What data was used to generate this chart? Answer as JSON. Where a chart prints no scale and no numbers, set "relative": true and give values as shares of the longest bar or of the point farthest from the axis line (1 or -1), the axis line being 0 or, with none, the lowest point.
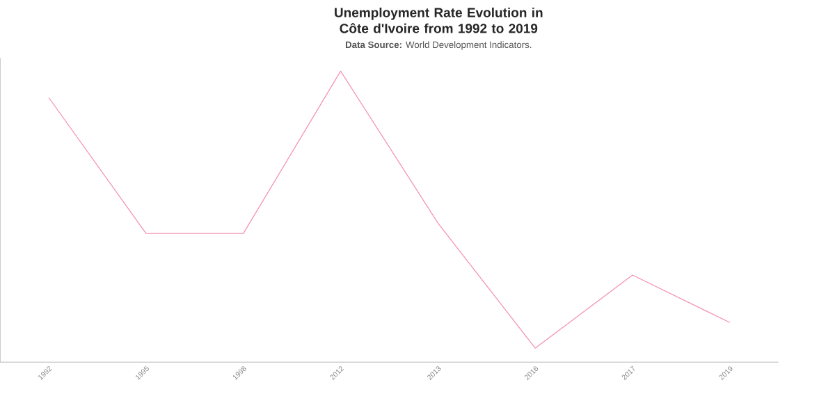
{
  "chart_data": {
    "type": "line",
    "title": "Unemployment Rate Evolution in Côte d'Ivoire from 1992 to 2019",
    "subtitle": "**Data Source:** World Development Indicators.",
    "categories": [
      "1992",
      "1995",
      "1998",
      "2012",
      "2013",
      "2016",
      "2017",
      "2019"
    ],
    "relative": true,
    "series": [
      {
        "color": "#f48fb1",
        "values": [
          0.909,
          0.442,
          0.442,
          1,
          0.478,
          0.048,
          0.299,
          0.136
        ]
      }
    ],
    "legend": false,
    "grid": false,
    "marker": "none",
    "line_style": "solid"
  }
}
